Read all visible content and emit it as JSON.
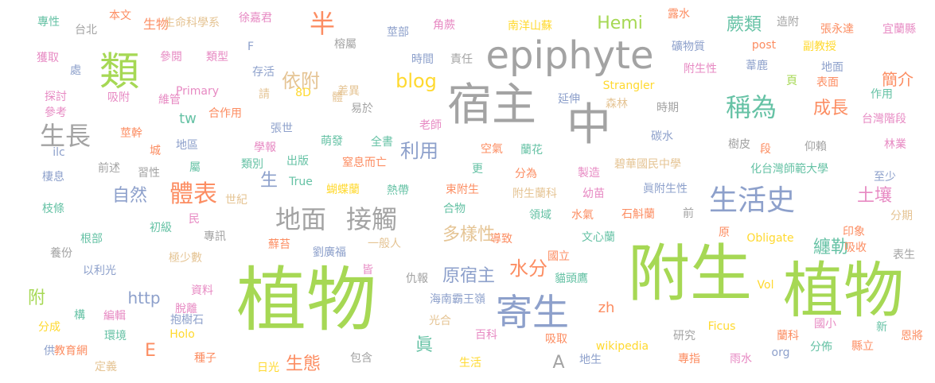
{
  "palette": {
    "green": "#a6d854",
    "grey": "#a3a3a3",
    "orange": "#fc8d62",
    "blue": "#8da0cb",
    "pink": "#e78ac3",
    "yellow": "#e5c494",
    "gold": "#ffd92f",
    "teal": "#66c2a5"
  },
  "words": [
    {
      "text": "植物",
      "weight": 100,
      "color": "green"
    },
    {
      "text": "附生",
      "weight": 90,
      "color": "green"
    },
    {
      "text": "植物",
      "weight": 90,
      "color": "green"
    },
    {
      "text": "epiphyte",
      "weight": 60,
      "color": "grey"
    },
    {
      "text": "宿主",
      "weight": 65,
      "color": "grey"
    },
    {
      "text": "中",
      "weight": 65,
      "color": "grey"
    },
    {
      "text": "寄生",
      "weight": 55,
      "color": "blue"
    },
    {
      "text": "類",
      "weight": 50,
      "color": "green"
    },
    {
      "text": "體表",
      "weight": 40,
      "color": "orange"
    },
    {
      "text": "地面",
      "weight": 40,
      "color": "grey"
    },
    {
      "text": "接觸",
      "weight": 40,
      "color": "grey"
    },
    {
      "text": "生活史",
      "weight": 40,
      "color": "blue"
    },
    {
      "text": "稱為",
      "weight": 40,
      "color": "teal"
    },
    {
      "text": "生長",
      "weight": 40,
      "color": "grey"
    },
    {
      "text": "半",
      "weight": 40,
      "color": "orange"
    },
    {
      "text": "依附",
      "weight": 35,
      "color": "yellow"
    },
    {
      "text": "blog",
      "weight": 35,
      "color": "gold"
    },
    {
      "text": "利用",
      "weight": 35,
      "color": "blue"
    },
    {
      "text": "水分",
      "weight": 35,
      "color": "orange"
    },
    {
      "text": "蕨類",
      "weight": 30,
      "color": "teal"
    },
    {
      "text": "Hemi",
      "weight": 30,
      "color": "green"
    },
    {
      "text": "成長",
      "weight": 30,
      "color": "orange"
    },
    {
      "text": "生態",
      "weight": 30,
      "color": "orange"
    },
    {
      "text": "自然",
      "weight": 30,
      "color": "blue"
    },
    {
      "text": "多樣性",
      "weight": 30,
      "color": "yellow"
    },
    {
      "text": "原宿主",
      "weight": 30,
      "color": "blue"
    },
    {
      "text": "土壤",
      "weight": 30,
      "color": "pink"
    },
    {
      "text": "纏勒",
      "weight": 30,
      "color": "teal"
    },
    {
      "text": "簡介",
      "weight": 25,
      "color": "orange"
    },
    {
      "text": "http",
      "weight": 25,
      "color": "blue"
    },
    {
      "text": "附",
      "weight": 25,
      "color": "green"
    },
    {
      "text": "E",
      "weight": 25,
      "color": "orange"
    },
    {
      "text": "A",
      "weight": 25,
      "color": "grey"
    },
    {
      "text": "zh",
      "weight": 25,
      "color": "orange"
    },
    {
      "text": "眞",
      "weight": 25,
      "color": "teal"
    },
    {
      "text": "tw",
      "weight": 20,
      "color": "teal"
    },
    {
      "text": "生",
      "weight": 25,
      "color": "blue"
    },
    {
      "text": "生物",
      "weight": 15,
      "color": "orange"
    },
    {
      "text": "專性",
      "weight": 15,
      "color": "teal"
    },
    {
      "text": "台北",
      "weight": 15,
      "color": "grey"
    },
    {
      "text": "本文",
      "weight": 15,
      "color": "orange"
    },
    {
      "text": "生命科學系",
      "weight": 15,
      "color": "yellow"
    },
    {
      "text": "徐嘉君",
      "weight": 15,
      "color": "pink"
    },
    {
      "text": "莖部",
      "weight": 15,
      "color": "blue"
    },
    {
      "text": "角蕨",
      "weight": 15,
      "color": "pink"
    },
    {
      "text": "南洋山蘇",
      "weight": 15,
      "color": "gold"
    },
    {
      "text": "露水",
      "weight": 15,
      "color": "orange"
    },
    {
      "text": "造附",
      "weight": 15,
      "color": "grey"
    },
    {
      "text": "張永達",
      "weight": 15,
      "color": "orange"
    },
    {
      "text": "宜蘭縣",
      "weight": 15,
      "color": "pink"
    },
    {
      "text": "獲取",
      "weight": 15,
      "color": "pink"
    },
    {
      "text": "參閱",
      "weight": 15,
      "color": "pink"
    },
    {
      "text": "類型",
      "weight": 15,
      "color": "pink"
    },
    {
      "text": "F",
      "weight": 15,
      "color": "blue"
    },
    {
      "text": "榕屬",
      "weight": 15,
      "color": "grey"
    },
    {
      "text": "時間",
      "weight": 15,
      "color": "blue"
    },
    {
      "text": "責任",
      "weight": 15,
      "color": "grey"
    },
    {
      "text": "礦物質",
      "weight": 15,
      "color": "blue"
    },
    {
      "text": "post",
      "weight": 15,
      "color": "orange"
    },
    {
      "text": "副教授",
      "weight": 15,
      "color": "gold"
    },
    {
      "text": "處",
      "weight": 15,
      "color": "blue"
    },
    {
      "text": "存活",
      "weight": 15,
      "color": "blue"
    },
    {
      "text": "附生性",
      "weight": 15,
      "color": "pink"
    },
    {
      "text": "葦鹿",
      "weight": 15,
      "color": "blue"
    },
    {
      "text": "地面",
      "weight": 15,
      "color": "blue"
    },
    {
      "text": "探討",
      "weight": 15,
      "color": "pink"
    },
    {
      "text": "吸附",
      "weight": 15,
      "color": "pink"
    },
    {
      "text": "維管",
      "weight": 15,
      "color": "pink"
    },
    {
      "text": "Primary",
      "weight": 15,
      "color": "pink"
    },
    {
      "text": "請",
      "weight": 15,
      "color": "yellow"
    },
    {
      "text": "8D",
      "weight": 15,
      "color": "gold"
    },
    {
      "text": "體",
      "weight": 15,
      "color": "yellow"
    },
    {
      "text": "差異",
      "weight": 15,
      "color": "yellow"
    },
    {
      "text": "易於",
      "weight": 15,
      "color": "grey"
    },
    {
      "text": "延伸",
      "weight": 15,
      "color": "blue"
    },
    {
      "text": "Strangler",
      "weight": 15,
      "color": "gold"
    },
    {
      "text": "森林",
      "weight": 15,
      "color": "yellow"
    },
    {
      "text": "時期",
      "weight": 15,
      "color": "grey"
    },
    {
      "text": "頁",
      "weight": 15,
      "color": "green"
    },
    {
      "text": "表面",
      "weight": 15,
      "color": "orange"
    },
    {
      "text": "作用",
      "weight": 15,
      "color": "teal"
    },
    {
      "text": "參考",
      "weight": 15,
      "color": "pink"
    },
    {
      "text": "合作用",
      "weight": 15,
      "color": "orange"
    },
    {
      "text": "老師",
      "weight": 15,
      "color": "pink"
    },
    {
      "text": "台灣階段",
      "weight": 15,
      "color": "pink"
    },
    {
      "text": "張世",
      "weight": 15,
      "color": "blue"
    },
    {
      "text": "莖幹",
      "weight": 15,
      "color": "orange"
    },
    {
      "text": "碳水",
      "weight": 15,
      "color": "blue"
    },
    {
      "text": "ilc",
      "weight": 15,
      "color": "blue"
    },
    {
      "text": "城",
      "weight": 15,
      "color": "orange"
    },
    {
      "text": "地區",
      "weight": 15,
      "color": "blue"
    },
    {
      "text": "學報",
      "weight": 15,
      "color": "pink"
    },
    {
      "text": "萌發",
      "weight": 15,
      "color": "teal"
    },
    {
      "text": "全書",
      "weight": 15,
      "color": "teal"
    },
    {
      "text": "空氣",
      "weight": 15,
      "color": "orange"
    },
    {
      "text": "蘭花",
      "weight": 15,
      "color": "teal"
    },
    {
      "text": "樹皮",
      "weight": 15,
      "color": "grey"
    },
    {
      "text": "段",
      "weight": 15,
      "color": "orange"
    },
    {
      "text": "仰賴",
      "weight": 15,
      "color": "grey"
    },
    {
      "text": "林業",
      "weight": 15,
      "color": "pink"
    },
    {
      "text": "前述",
      "weight": 15,
      "color": "grey"
    },
    {
      "text": "類別",
      "weight": 15,
      "color": "teal"
    },
    {
      "text": "出版",
      "weight": 15,
      "color": "teal"
    },
    {
      "text": "窒息而亡",
      "weight": 15,
      "color": "orange"
    },
    {
      "text": "更",
      "weight": 15,
      "color": "teal"
    },
    {
      "text": "碧華國民中學",
      "weight": 15,
      "color": "yellow"
    },
    {
      "text": "化台灣師範大學",
      "weight": 15,
      "color": "teal"
    },
    {
      "text": "棲息",
      "weight": 15,
      "color": "blue"
    },
    {
      "text": "習性",
      "weight": 15,
      "color": "grey"
    },
    {
      "text": "屬",
      "weight": 15,
      "color": "teal"
    },
    {
      "text": "True",
      "weight": 15,
      "color": "teal"
    },
    {
      "text": "分為",
      "weight": 15,
      "color": "orange"
    },
    {
      "text": "製造",
      "weight": 15,
      "color": "pink"
    },
    {
      "text": "至少",
      "weight": 15,
      "color": "blue"
    },
    {
      "text": "世紀",
      "weight": 15,
      "color": "yellow"
    },
    {
      "text": "蝴蝶蘭",
      "weight": 15,
      "color": "gold"
    },
    {
      "text": "熱帶",
      "weight": 15,
      "color": "teal"
    },
    {
      "text": "束附生",
      "weight": 15,
      "color": "orange"
    },
    {
      "text": "附生蘭科",
      "weight": 15,
      "color": "yellow"
    },
    {
      "text": "幼苗",
      "weight": 15,
      "color": "pink"
    },
    {
      "text": "眞附生性",
      "weight": 15,
      "color": "blue"
    },
    {
      "text": "枝條",
      "weight": 15,
      "color": "teal"
    },
    {
      "text": "民",
      "weight": 15,
      "color": "pink"
    },
    {
      "text": "合物",
      "weight": 15,
      "color": "teal"
    },
    {
      "text": "領域",
      "weight": 15,
      "color": "teal"
    },
    {
      "text": "水氣",
      "weight": 15,
      "color": "orange"
    },
    {
      "text": "石斛蘭",
      "weight": 15,
      "color": "orange"
    },
    {
      "text": "前",
      "weight": 15,
      "color": "grey"
    },
    {
      "text": "分期",
      "weight": 15,
      "color": "yellow"
    },
    {
      "text": "初級",
      "weight": 15,
      "color": "teal"
    },
    {
      "text": "根部",
      "weight": 15,
      "color": "teal"
    },
    {
      "text": "專訊",
      "weight": 15,
      "color": "grey"
    },
    {
      "text": "蘚苔",
      "weight": 15,
      "color": "orange"
    },
    {
      "text": "一般人",
      "weight": 15,
      "color": "yellow"
    },
    {
      "text": "導致",
      "weight": 15,
      "color": "orange"
    },
    {
      "text": "文心蘭",
      "weight": 15,
      "color": "teal"
    },
    {
      "text": "原",
      "weight": 15,
      "color": "orange"
    },
    {
      "text": "Obligate",
      "weight": 15,
      "color": "gold"
    },
    {
      "text": "印象",
      "weight": 15,
      "color": "orange"
    },
    {
      "text": "養份",
      "weight": 15,
      "color": "grey"
    },
    {
      "text": "極少數",
      "weight": 15,
      "color": "yellow"
    },
    {
      "text": "劉廣福",
      "weight": 15,
      "color": "blue"
    },
    {
      "text": "國立",
      "weight": 15,
      "color": "orange"
    },
    {
      "text": "吸收",
      "weight": 15,
      "color": "orange"
    },
    {
      "text": "表生",
      "weight": 15,
      "color": "grey"
    },
    {
      "text": "以利光",
      "weight": 15,
      "color": "blue"
    },
    {
      "text": "皆",
      "weight": 15,
      "color": "pink"
    },
    {
      "text": "仇報",
      "weight": 15,
      "color": "grey"
    },
    {
      "text": "貓頭鷹",
      "weight": 15,
      "color": "teal"
    },
    {
      "text": "資料",
      "weight": 15,
      "color": "pink"
    },
    {
      "text": "Vol",
      "weight": 15,
      "color": "gold"
    },
    {
      "text": "海南霸王嶺",
      "weight": 15,
      "color": "blue"
    },
    {
      "text": "構",
      "weight": 15,
      "color": "teal"
    },
    {
      "text": "編輯",
      "weight": 15,
      "color": "pink"
    },
    {
      "text": "脫離",
      "weight": 15,
      "color": "pink"
    },
    {
      "text": "抱樹石",
      "weight": 15,
      "color": "blue"
    },
    {
      "text": "光合",
      "weight": 15,
      "color": "yellow"
    },
    {
      "text": "國小",
      "weight": 15,
      "color": "pink"
    },
    {
      "text": "分成",
      "weight": 15,
      "color": "gold"
    },
    {
      "text": "環境",
      "weight": 15,
      "color": "teal"
    },
    {
      "text": "Holo",
      "weight": 15,
      "color": "gold"
    },
    {
      "text": "百科",
      "weight": 15,
      "color": "pink"
    },
    {
      "text": "吸取",
      "weight": 15,
      "color": "orange"
    },
    {
      "text": "研究",
      "weight": 15,
      "color": "grey"
    },
    {
      "text": "Ficus",
      "weight": 15,
      "color": "gold"
    },
    {
      "text": "蘭科",
      "weight": 15,
      "color": "orange"
    },
    {
      "text": "新",
      "weight": 15,
      "color": "teal"
    },
    {
      "text": "恩將",
      "weight": 15,
      "color": "orange"
    },
    {
      "text": "供",
      "weight": 15,
      "color": "blue"
    },
    {
      "text": "教育網",
      "weight": 15,
      "color": "orange"
    },
    {
      "text": "定義",
      "weight": 15,
      "color": "yellow"
    },
    {
      "text": "種子",
      "weight": 15,
      "color": "orange"
    },
    {
      "text": "日光",
      "weight": 15,
      "color": "gold"
    },
    {
      "text": "包含",
      "weight": 15,
      "color": "grey"
    },
    {
      "text": "生活",
      "weight": 15,
      "color": "gold"
    },
    {
      "text": "地生",
      "weight": 15,
      "color": "blue"
    },
    {
      "text": "wikipedia",
      "weight": 15,
      "color": "gold"
    },
    {
      "text": "專指",
      "weight": 15,
      "color": "orange"
    },
    {
      "text": "雨水",
      "weight": 15,
      "color": "pink"
    },
    {
      "text": "org",
      "weight": 15,
      "color": "blue"
    },
    {
      "text": "分佈",
      "weight": 15,
      "color": "teal"
    },
    {
      "text": "縣立",
      "weight": 15,
      "color": "orange"
    }
  ]
}
